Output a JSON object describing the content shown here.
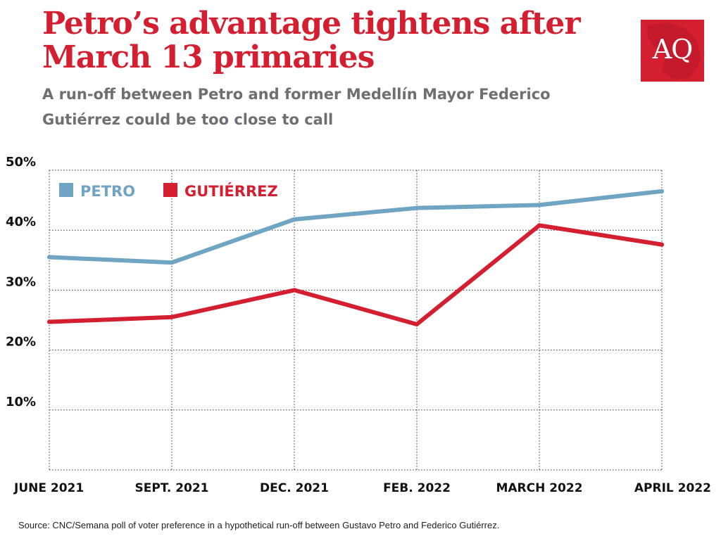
{
  "header": {
    "title": "Petro’s advantage tightens after March 13 primaries",
    "subtitle": "A run-off between Petro and former Medellín Mayor Federico Gutiérrez could be too close to call"
  },
  "logo": {
    "text": "AQ",
    "color": "#d31f30"
  },
  "source": "Source: CNC/Semana poll of voter preference in a hypothetical run-off between Gustavo Petro and Federico Gutiérrez.",
  "chart_data": {
    "type": "line",
    "categories": [
      "JUNE 2021",
      "SEPT. 2021",
      "DEC. 2021",
      "FEB. 2022",
      "MARCH 2022",
      "APRIL 2022"
    ],
    "yticks": [
      "10%",
      "20%",
      "30%",
      "40%",
      "50%"
    ],
    "ytick_values": [
      10,
      20,
      30,
      40,
      50
    ],
    "ylim": [
      0,
      50
    ],
    "grid": true,
    "legend_position": "top-left",
    "series": [
      {
        "name": "PETRO",
        "color": "#6fa4c3",
        "values": [
          35.5,
          34.6,
          41.8,
          43.7,
          44.2,
          46.5
        ]
      },
      {
        "name": "GUTIÉRREZ",
        "color": "#d31f30",
        "values": [
          24.7,
          25.5,
          30.0,
          24.3,
          40.8,
          37.6
        ]
      }
    ]
  }
}
